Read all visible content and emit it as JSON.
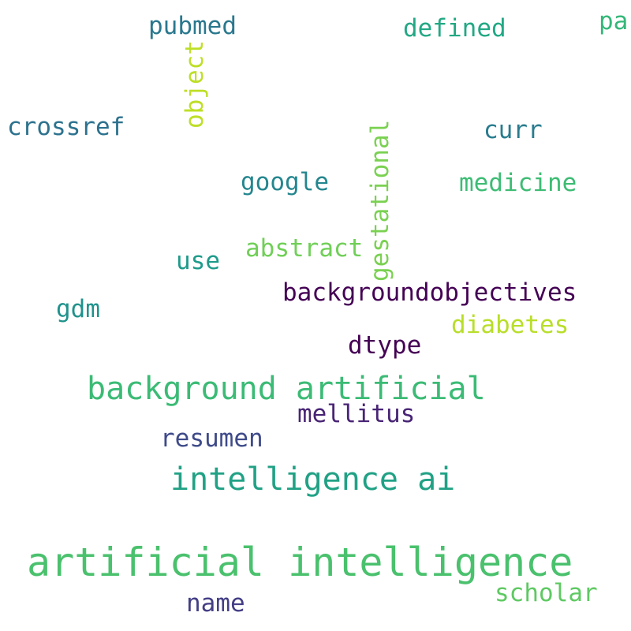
{
  "words": [
    {
      "text": "artificial intelligence",
      "color": "#4ac16d"
    },
    {
      "text": "intelligence ai",
      "color": "#21a185"
    },
    {
      "text": "background artificial",
      "color": "#3bbb75"
    },
    {
      "text": "backgroundobjectives",
      "color": "#440154"
    },
    {
      "text": "gestational",
      "color": "#7ad151"
    },
    {
      "text": "object",
      "color": "#bddf26"
    },
    {
      "text": "pubmed",
      "color": "#2a788e"
    },
    {
      "text": "defined",
      "color": "#22a884"
    },
    {
      "text": "pa",
      "color": "#35b779"
    },
    {
      "text": "crossref",
      "color": "#2c728e"
    },
    {
      "text": "curr",
      "color": "#287c8e"
    },
    {
      "text": "google",
      "color": "#24868e"
    },
    {
      "text": "medicine",
      "color": "#3dbc74"
    },
    {
      "text": "abstract",
      "color": "#70cf57"
    },
    {
      "text": "use",
      "color": "#1e9b8a"
    },
    {
      "text": "gdm",
      "color": "#20928c"
    },
    {
      "text": "diabetes",
      "color": "#b8de29"
    },
    {
      "text": "dtype",
      "color": "#440154"
    },
    {
      "text": "mellitus",
      "color": "#482475"
    },
    {
      "text": "resumen",
      "color": "#3e4a89"
    },
    {
      "text": "scholar",
      "color": "#5ec962"
    },
    {
      "text": "name",
      "color": "#433e85"
    }
  ]
}
